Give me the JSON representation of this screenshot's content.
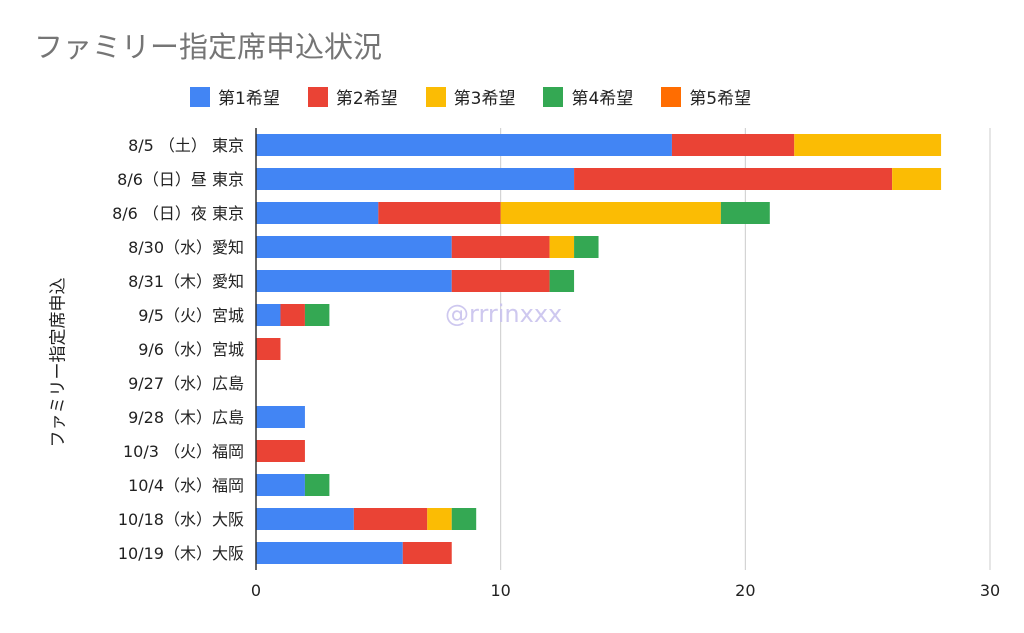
{
  "chart_data": {
    "type": "bar",
    "orientation": "horizontal",
    "stacked": true,
    "title": "ファミリー指定席申込状況",
    "xlabel": "",
    "ylabel": "ファミリー指定席申込",
    "xlim": [
      0,
      30
    ],
    "xticks": [
      "0",
      "10",
      "20",
      "30"
    ],
    "grid": true,
    "legend_position": "top",
    "watermark": "@rrrinxxx",
    "categories": [
      "8/5 （土） 東京",
      "8/6（日）昼 東京",
      "8/6 （日）夜 東京",
      "8/30（水）愛知",
      "8/31（木）愛知",
      "9/5（火）宮城",
      "9/6（水）宮城",
      "9/27（水）広島",
      "9/28（木）広島",
      "10/3 （火）福岡",
      "10/4（水）福岡",
      "10/18（水）大阪",
      "10/19（木）大阪"
    ],
    "series": [
      {
        "name": "第1希望",
        "color": "#4285F4",
        "values": [
          17,
          13,
          5,
          8,
          8,
          1,
          0,
          0,
          2,
          0,
          2,
          4,
          6
        ]
      },
      {
        "name": "第2希望",
        "color": "#EA4335",
        "values": [
          5,
          13,
          5,
          4,
          4,
          1,
          1,
          0,
          0,
          2,
          0,
          3,
          2
        ]
      },
      {
        "name": "第3希望",
        "color": "#FBBC04",
        "values": [
          6,
          2,
          9,
          1,
          0,
          0,
          0,
          0,
          0,
          0,
          0,
          1,
          0
        ]
      },
      {
        "name": "第4希望",
        "color": "#34A853",
        "values": [
          0,
          0,
          2,
          1,
          1,
          1,
          0,
          0,
          0,
          0,
          1,
          1,
          0
        ]
      },
      {
        "name": "第5希望",
        "color": "#FF6D01",
        "values": [
          0,
          0,
          0,
          0,
          0,
          0,
          0,
          0,
          0,
          0,
          0,
          0,
          0
        ]
      }
    ]
  }
}
